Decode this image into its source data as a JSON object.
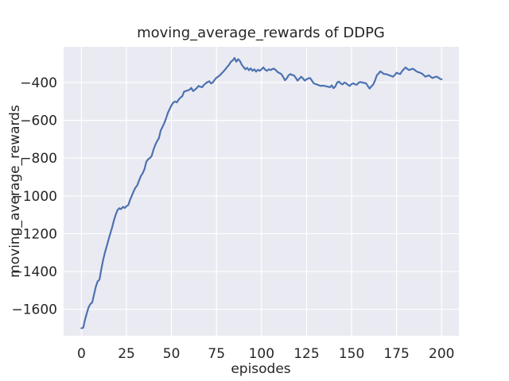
{
  "figure": {
    "title": "moving_average_rewards of DDPG",
    "xlabel": "episodes",
    "ylabel": "moving_average_rewards"
  },
  "colors": {
    "figure_bg": "#ffffff",
    "axes_bg": "#eaeaf2",
    "grid": "#ffffff",
    "line": "#4c72b0",
    "text": "#262626"
  },
  "chart_data": {
    "type": "line",
    "title": "moving_average_rewards of DDPG",
    "xlabel": "episodes",
    "ylabel": "moving_average_rewards",
    "grid": true,
    "legend": null,
    "xlim": [
      -9.9,
      209.6
    ],
    "ylim": [
      -1740,
      -211
    ],
    "x_ticks": [
      0,
      25,
      50,
      75,
      100,
      125,
      150,
      175,
      200
    ],
    "x_tick_labels": [
      "0",
      "25",
      "50",
      "75",
      "100",
      "125",
      "150",
      "175",
      "200"
    ],
    "y_ticks": [
      -400,
      -600,
      -800,
      -1000,
      -1200,
      -1400,
      -1600
    ],
    "y_tick_labels": [
      "−400",
      "−600",
      "−800",
      "−1000",
      "−1200",
      "−1400",
      "−1600"
    ],
    "series": [
      {
        "name": "moving_average_rewards",
        "color": "#4c72b0",
        "x_start": 0,
        "x_step": 1,
        "y": [
          -1700,
          -1697,
          -1655,
          -1620,
          -1588,
          -1572,
          -1563,
          -1520,
          -1480,
          -1452,
          -1443,
          -1390,
          -1340,
          -1300,
          -1268,
          -1232,
          -1200,
          -1168,
          -1130,
          -1100,
          -1076,
          -1065,
          -1070,
          -1058,
          -1064,
          -1054,
          -1048,
          -1020,
          -998,
          -975,
          -956,
          -944,
          -918,
          -895,
          -880,
          -858,
          -820,
          -806,
          -800,
          -788,
          -755,
          -730,
          -710,
          -694,
          -655,
          -635,
          -614,
          -590,
          -560,
          -540,
          -520,
          -506,
          -500,
          -505,
          -490,
          -480,
          -472,
          -448,
          -445,
          -442,
          -438,
          -428,
          -445,
          -438,
          -430,
          -418,
          -422,
          -425,
          -412,
          -404,
          -398,
          -393,
          -405,
          -399,
          -385,
          -375,
          -368,
          -360,
          -350,
          -340,
          -328,
          -317,
          -305,
          -290,
          -283,
          -270,
          -290,
          -276,
          -286,
          -305,
          -318,
          -330,
          -322,
          -335,
          -325,
          -338,
          -330,
          -342,
          -332,
          -338,
          -330,
          -320,
          -332,
          -338,
          -330,
          -334,
          -328,
          -327,
          -335,
          -345,
          -350,
          -355,
          -370,
          -388,
          -378,
          -362,
          -355,
          -360,
          -362,
          -375,
          -390,
          -380,
          -369,
          -378,
          -390,
          -383,
          -378,
          -376,
          -390,
          -404,
          -408,
          -411,
          -415,
          -418,
          -416,
          -418,
          -420,
          -422,
          -425,
          -415,
          -430,
          -420,
          -400,
          -395,
          -405,
          -410,
          -400,
          -404,
          -412,
          -418,
          -408,
          -404,
          -410,
          -411,
          -400,
          -397,
          -400,
          -402,
          -404,
          -418,
          -432,
          -420,
          -411,
          -390,
          -362,
          -352,
          -341,
          -348,
          -355,
          -355,
          -358,
          -362,
          -365,
          -369,
          -360,
          -348,
          -352,
          -355,
          -340,
          -330,
          -320,
          -328,
          -334,
          -330,
          -327,
          -333,
          -341,
          -345,
          -348,
          -352,
          -360,
          -369,
          -365,
          -362,
          -370,
          -376,
          -372,
          -369,
          -372,
          -380,
          -383
        ]
      }
    ]
  }
}
